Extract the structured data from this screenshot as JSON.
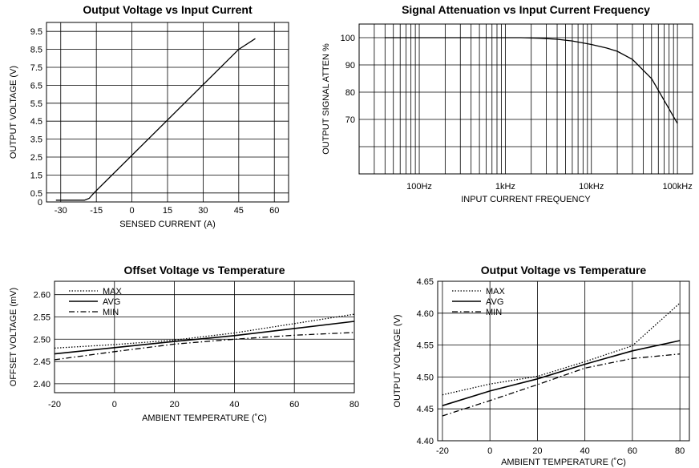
{
  "chart_data": [
    {
      "type": "line",
      "title": "Output Voltage vs Input Current",
      "xlabel": "SENSED CURRENT (A)",
      "ylabel": "OUTPUT VOLTAGE (V)",
      "xlim": [
        -36,
        66
      ],
      "ylim": [
        0,
        10
      ],
      "x_ticks": [
        -30,
        -15,
        0,
        15,
        30,
        45,
        60
      ],
      "y_ticks": [
        0,
        0.5,
        1.5,
        2.5,
        3.5,
        4.5,
        5.5,
        6.5,
        7.5,
        8.5,
        9.5
      ],
      "grid": true,
      "series": [
        {
          "x": [
            -32,
            -20,
            -18,
            -16,
            45,
            52
          ],
          "y": [
            0.1,
            0.1,
            0.2,
            0.5,
            8.5,
            9.1
          ]
        }
      ]
    },
    {
      "type": "line",
      "title": "Signal Attenuation vs Input Current Frequency",
      "xlabel": "INPUT CURRENT FREQUENCY",
      "ylabel": "OUTPUT SIGNAL ATTEN %",
      "x_scale": "log",
      "xlim": [
        20,
        150000
      ],
      "ylim": [
        50,
        105
      ],
      "x_ticks": [
        100,
        1000,
        10000,
        100000
      ],
      "x_tick_labels": [
        "100Hz",
        "1kHz",
        "10kHz",
        "100kHz"
      ],
      "y_ticks": [
        70,
        80,
        90,
        100
      ],
      "grid": true,
      "series": [
        {
          "x": [
            40,
            500,
            1000,
            1500,
            2500,
            4000,
            6000,
            10000,
            15000,
            20000,
            30000,
            50000,
            70000,
            100000
          ],
          "y": [
            100,
            100,
            100,
            100,
            99.8,
            99.4,
            98.8,
            97.5,
            96.2,
            95,
            92,
            85,
            77,
            68.5
          ]
        }
      ]
    },
    {
      "type": "line",
      "title": "Offset Voltage vs Temperature",
      "xlabel": "AMBIENT TEMPERATURE (˚C)",
      "ylabel": "OFFSET VOLTAGE (mV)",
      "xlim": [
        -20,
        80
      ],
      "ylim": [
        2.38,
        2.63
      ],
      "x_ticks": [
        -20,
        0,
        20,
        40,
        60,
        80
      ],
      "y_ticks": [
        2.4,
        2.45,
        2.5,
        2.55,
        2.6
      ],
      "y_tick_labels": [
        "2.40",
        "2.45",
        "2.50",
        "2.55",
        "2.60"
      ],
      "grid": true,
      "legend": "top-left",
      "series": [
        {
          "name": "MAX",
          "style": "dotted",
          "x": [
            -20,
            0,
            20,
            40,
            60,
            80
          ],
          "y": [
            2.48,
            2.488,
            2.498,
            2.514,
            2.535,
            2.556
          ]
        },
        {
          "name": "AVG",
          "style": "solid",
          "x": [
            -20,
            0,
            20,
            40,
            60,
            80
          ],
          "y": [
            2.467,
            2.481,
            2.495,
            2.508,
            2.524,
            2.54
          ]
        },
        {
          "name": "MIN",
          "style": "dashdot",
          "x": [
            -20,
            0,
            20,
            40,
            60,
            80
          ],
          "y": [
            2.454,
            2.472,
            2.489,
            2.5,
            2.509,
            2.515
          ]
        }
      ]
    },
    {
      "type": "line",
      "title": "Output Voltage vs Temperature",
      "xlabel": "AMBIENT TEMPERATURE (˚C)",
      "ylabel": "OUTPUT VOLTAGE (V)",
      "xlim": [
        -22,
        84
      ],
      "ylim": [
        4.4,
        4.65
      ],
      "x_ticks": [
        -20,
        0,
        20,
        40,
        60,
        80
      ],
      "y_ticks": [
        4.4,
        4.45,
        4.5,
        4.55,
        4.6,
        4.65
      ],
      "y_tick_labels": [
        "4.40",
        "4.45",
        "4.50",
        "4.55",
        "4.60",
        "4.65"
      ],
      "grid": true,
      "legend": "top-left",
      "series": [
        {
          "name": "MAX",
          "style": "dotted",
          "x": [
            -20,
            0,
            20,
            40,
            60,
            80
          ],
          "y": [
            4.472,
            4.489,
            4.501,
            4.524,
            4.549,
            4.616
          ]
        },
        {
          "name": "AVG",
          "style": "solid",
          "x": [
            -20,
            0,
            20,
            40,
            60,
            80
          ],
          "y": [
            4.455,
            4.478,
            4.497,
            4.52,
            4.541,
            4.557
          ]
        },
        {
          "name": "MIN",
          "style": "dashdot",
          "x": [
            -20,
            0,
            20,
            40,
            60,
            80
          ],
          "y": [
            4.439,
            4.463,
            4.488,
            4.514,
            4.529,
            4.536
          ]
        }
      ]
    }
  ]
}
